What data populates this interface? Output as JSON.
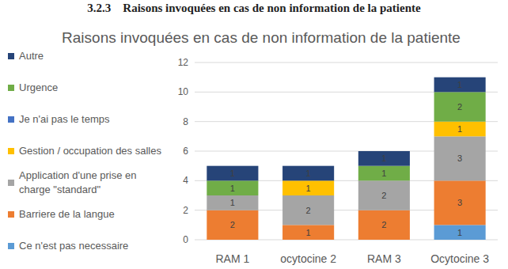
{
  "heading": "3.2.3    Raisons invoquées en cas de non information de la patiente",
  "chart_data": {
    "type": "bar",
    "stacked": true,
    "title": "Raisons invoquées en cas de non information de la patiente",
    "categories": [
      "RAM 1",
      "ocytocine 2",
      "RAM 3",
      "Ocytocine 3"
    ],
    "series": [
      {
        "name": "Ce n'est pas necessaire",
        "color": "#5b9bd5",
        "values": [
          null,
          null,
          null,
          1
        ]
      },
      {
        "name": "Barriere de la langue",
        "color": "#ed7d31",
        "values": [
          2,
          1,
          2,
          3
        ]
      },
      {
        "name": "Application d'une prise en charge \"standard\"",
        "color": "#a5a5a5",
        "values": [
          1,
          2,
          2,
          3
        ]
      },
      {
        "name": "Gestion / occupation des salles",
        "color": "#ffc000",
        "values": [
          null,
          1,
          null,
          1
        ]
      },
      {
        "name": "Je n'ai pas le temps",
        "color": "#4472c4",
        "values": [
          null,
          null,
          null,
          null
        ]
      },
      {
        "name": "Urgence",
        "color": "#70ad47",
        "values": [
          1,
          null,
          1,
          2
        ]
      },
      {
        "name": "Autre",
        "color": "#264478",
        "values": [
          1,
          1,
          1,
          1
        ]
      }
    ],
    "ylim": [
      0,
      12
    ],
    "yticks": [
      0,
      2,
      4,
      6,
      8,
      10,
      12
    ],
    "grid": true,
    "legend": "left",
    "data_labels": true
  }
}
